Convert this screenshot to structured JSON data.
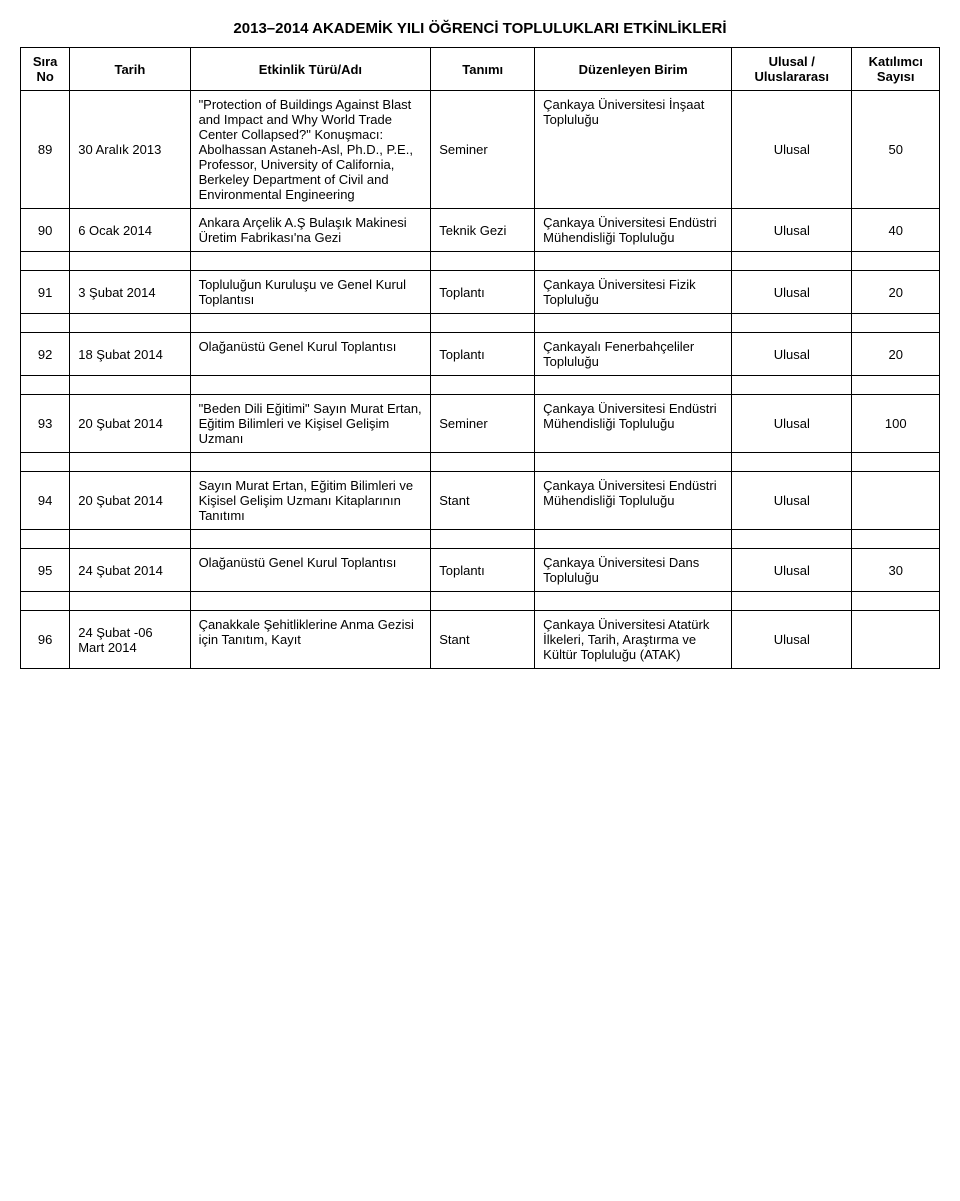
{
  "title": "2013–2014 AKADEMİK YILI ÖĞRENCİ TOPLULUKLARI ETKİNLİKLERİ",
  "headers": {
    "sira": "Sıra No",
    "tarih": "Tarih",
    "etkinlik": "Etkinlik Türü/Adı",
    "tanimi": "Tanımı",
    "birim": "Düzenleyen Birim",
    "ulusal": "Ulusal / Uluslararası",
    "katilimci": "Katılımcı Sayısı"
  },
  "rows": [
    {
      "sira": "89",
      "tarih": "30 Aralık 2013",
      "etkinlik": "\"Protection of Buildings Against Blast and Impact and Why World Trade Center Collapsed?\" Konuşmacı: Abolhassan Astaneh-Asl, Ph.D., P.E., Professor, University of California, Berkeley Department of Civil and Environmental Engineering",
      "tanimi": "Seminer",
      "birim": "Çankaya Üniversitesi İnşaat Topluluğu",
      "ulusal": "Ulusal",
      "katilimci": "50"
    },
    {
      "sira": "90",
      "tarih": "6 Ocak 2014",
      "etkinlik": "Ankara Arçelik A.Ş Bulaşık Makinesi Üretim Fabrikası'na Gezi",
      "tanimi": "Teknik Gezi",
      "birim": "Çankaya Üniversitesi Endüstri Mühendisliği Topluluğu",
      "ulusal": "Ulusal",
      "katilimci": "40"
    },
    {
      "sira": "91",
      "tarih": "3 Şubat 2014",
      "etkinlik": "Topluluğun Kuruluşu ve Genel Kurul Toplantısı",
      "tanimi": "Toplantı",
      "birim": "Çankaya Üniversitesi Fizik Topluluğu",
      "ulusal": "Ulusal",
      "katilimci": "20"
    },
    {
      "sira": "92",
      "tarih": "18 Şubat 2014",
      "etkinlik": "Olağanüstü Genel Kurul Toplantısı",
      "tanimi": "Toplantı",
      "birim": "Çankayalı Fenerbahçeliler Topluluğu",
      "ulusal": "Ulusal",
      "katilimci": "20"
    },
    {
      "sira": "93",
      "tarih": "20 Şubat 2014",
      "etkinlik": "\"Beden Dili Eğitimi\" Sayın Murat Ertan, Eğitim Bilimleri ve Kişisel Gelişim Uzmanı",
      "tanimi": "Seminer",
      "birim": "Çankaya Üniversitesi Endüstri Mühendisliği Topluluğu",
      "ulusal": "Ulusal",
      "katilimci": "100"
    },
    {
      "sira": "94",
      "tarih": "20 Şubat 2014",
      "etkinlik": "Sayın Murat Ertan, Eğitim Bilimleri ve Kişisel Gelişim Uzmanı Kitaplarının Tanıtımı",
      "tanimi": "Stant",
      "birim": "Çankaya Üniversitesi Endüstri Mühendisliği Topluluğu",
      "ulusal": "Ulusal",
      "katilimci": ""
    },
    {
      "sira": "95",
      "tarih": "24 Şubat 2014",
      "etkinlik": "Olağanüstü Genel Kurul Toplantısı",
      "tanimi": "Toplantı",
      "birim": "Çankaya Üniversitesi Dans Topluluğu",
      "ulusal": "Ulusal",
      "katilimci": "30"
    },
    {
      "sira": "96",
      "tarih": "24 Şubat -06 Mart 2014",
      "etkinlik": "Çanakkale Şehitliklerine Anma Gezisi için Tanıtım, Kayıt",
      "tanimi": "Stant",
      "birim": "Çankaya Üniversitesi Atatürk İlkeleri, Tarih, Araştırma ve Kültür Topluluğu (ATAK)",
      "ulusal": "Ulusal",
      "katilimci": ""
    }
  ]
}
